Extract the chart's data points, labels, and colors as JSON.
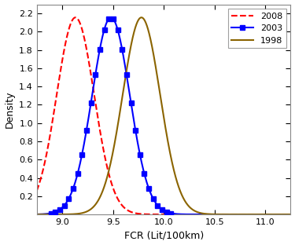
{
  "title": "",
  "xlabel": "FCR (Lit/100km)",
  "ylabel": "Density",
  "xlim": [
    8.75,
    11.25
  ],
  "ylim": [
    0,
    2.3
  ],
  "yticks": [
    0.2,
    0.4,
    0.6,
    0.8,
    1.0,
    1.2,
    1.4,
    1.6,
    1.8,
    2.0,
    2.2
  ],
  "xticks": [
    9,
    9.5,
    10,
    10.5,
    11
  ],
  "curves": [
    {
      "label": "2008",
      "mean": 9.13,
      "std": 0.185,
      "color": "#FF0000",
      "linestyle": "--",
      "linewidth": 1.5,
      "marker": null
    },
    {
      "label": "2003",
      "mean": 9.48,
      "std": 0.185,
      "color": "#0000FF",
      "linestyle": "-",
      "linewidth": 1.5,
      "marker": "s",
      "markersize": 4,
      "n_markers": 28
    },
    {
      "label": "1998",
      "mean": 9.78,
      "std": 0.185,
      "color": "#8B6400",
      "linestyle": "-",
      "linewidth": 1.5,
      "marker": null
    }
  ],
  "legend_loc": "upper right",
  "legend_fontsize": 8,
  "axes_bg": "#FFFFFF",
  "figure_bg": "#FFFFFF",
  "tick_labelsize": 8,
  "xlabel_fontsize": 9,
  "ylabel_fontsize": 9
}
